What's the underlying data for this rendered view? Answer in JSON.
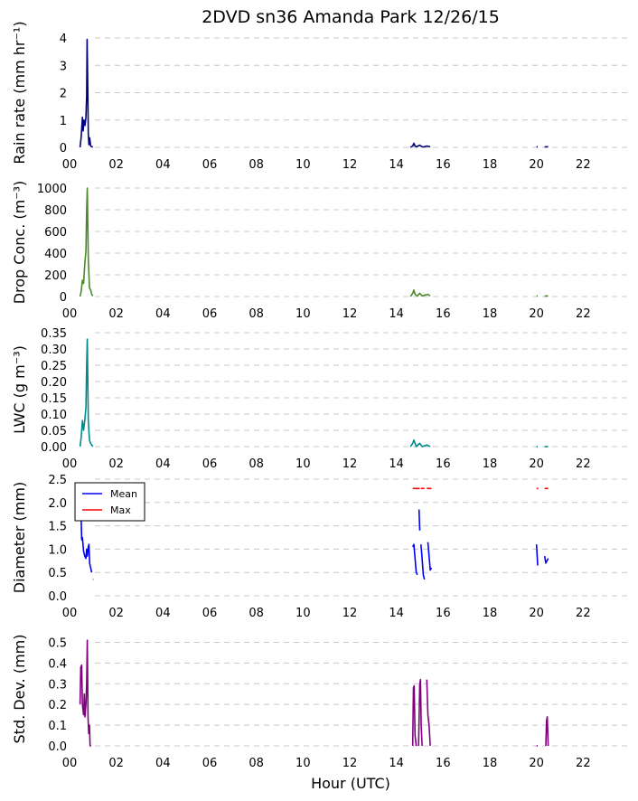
{
  "figure_title": "2DVD sn36 Amanda Park 12/26/15",
  "xlabel": "Hour (UTC)",
  "x_tick_labels": [
    "00",
    "02",
    "04",
    "06",
    "08",
    "10",
    "12",
    "14",
    "16",
    "18",
    "20",
    "22"
  ],
  "chart_data": [
    {
      "type": "line",
      "ylabel": "Rain rate (mm hr⁻¹)",
      "xlim": [
        0,
        24
      ],
      "ylim": [
        0,
        4
      ],
      "yticks": [
        0,
        1,
        2,
        3,
        4
      ],
      "ytick_labels": [
        "0",
        "1",
        "2",
        "3",
        "4"
      ],
      "grid": "horizontal dashed",
      "series": [
        {
          "color": "#000080",
          "segments": [
            [
              [
                0.45,
                0
              ],
              [
                0.5,
                0.4
              ],
              [
                0.55,
                1.1
              ],
              [
                0.58,
                0.6
              ],
              [
                0.62,
                1.0
              ],
              [
                0.66,
                0.8
              ],
              [
                0.7,
                1.1
              ],
              [
                0.73,
                1.9
              ],
              [
                0.75,
                3.95
              ],
              [
                0.78,
                2.0
              ],
              [
                0.8,
                0.5
              ],
              [
                0.83,
                0.1
              ],
              [
                0.86,
                0.35
              ],
              [
                0.9,
                0.05
              ],
              [
                0.95,
                0.02
              ],
              [
                1.0,
                0.02
              ]
            ],
            [
              [
                14.6,
                0
              ],
              [
                14.7,
                0.05
              ],
              [
                14.75,
                0.15
              ],
              [
                14.8,
                0.05
              ],
              [
                14.85,
                0.02
              ],
              [
                15.0,
                0.08
              ],
              [
                15.1,
                0.02
              ],
              [
                15.2,
                0.02
              ],
              [
                15.3,
                0.05
              ],
              [
                15.45,
                0.02
              ]
            ],
            [
              [
                20.0,
                0.02
              ],
              [
                20.05,
                0.02
              ]
            ],
            [
              [
                20.35,
                0.02
              ],
              [
                20.5,
                0.02
              ]
            ]
          ]
        }
      ]
    },
    {
      "type": "line",
      "ylabel": "Drop Conc. (m⁻³)",
      "xlim": [
        0,
        24
      ],
      "ylim": [
        0,
        1000
      ],
      "yticks": [
        0,
        200,
        400,
        600,
        800,
        1000
      ],
      "ytick_labels": [
        "0",
        "200",
        "400",
        "600",
        "800",
        "1000"
      ],
      "grid": "horizontal dashed",
      "series": [
        {
          "color": "#4a8a2a",
          "segments": [
            [
              [
                0.45,
                0
              ],
              [
                0.5,
                50
              ],
              [
                0.55,
                150
              ],
              [
                0.6,
                120
              ],
              [
                0.65,
                300
              ],
              [
                0.7,
                420
              ],
              [
                0.73,
                800
              ],
              [
                0.76,
                1000
              ],
              [
                0.8,
                350
              ],
              [
                0.85,
                80
              ],
              [
                0.9,
                60
              ],
              [
                0.95,
                20
              ],
              [
                1.0,
                5
              ]
            ],
            [
              [
                14.6,
                0
              ],
              [
                14.7,
                30
              ],
              [
                14.75,
                60
              ],
              [
                14.8,
                20
              ],
              [
                14.9,
                5
              ],
              [
                15.0,
                30
              ],
              [
                15.1,
                5
              ],
              [
                15.25,
                15
              ],
              [
                15.35,
                20
              ],
              [
                15.45,
                5
              ]
            ],
            [
              [
                20.0,
                5
              ],
              [
                20.05,
                5
              ]
            ],
            [
              [
                20.35,
                5
              ],
              [
                20.5,
                5
              ]
            ]
          ]
        }
      ]
    },
    {
      "type": "line",
      "ylabel": "LWC (g m⁻³)",
      "xlim": [
        0,
        24
      ],
      "ylim": [
        0,
        0.35
      ],
      "yticks": [
        0,
        0.05,
        0.1,
        0.15,
        0.2,
        0.25,
        0.3,
        0.35
      ],
      "ytick_labels": [
        "0.00",
        "0.05",
        "0.10",
        "0.15",
        "0.20",
        "0.25",
        "0.30",
        "0.35"
      ],
      "grid": "horizontal dashed",
      "series": [
        {
          "color": "#008b8b",
          "segments": [
            [
              [
                0.45,
                0
              ],
              [
                0.5,
                0.03
              ],
              [
                0.55,
                0.08
              ],
              [
                0.6,
                0.05
              ],
              [
                0.65,
                0.08
              ],
              [
                0.7,
                0.12
              ],
              [
                0.73,
                0.25
              ],
              [
                0.76,
                0.33
              ],
              [
                0.8,
                0.08
              ],
              [
                0.85,
                0.02
              ],
              [
                0.9,
                0.01
              ],
              [
                1.0,
                0.0
              ]
            ],
            [
              [
                14.6,
                0
              ],
              [
                14.7,
                0.01
              ],
              [
                14.75,
                0.02
              ],
              [
                14.8,
                0.01
              ],
              [
                14.85,
                0.0
              ],
              [
                15.0,
                0.01
              ],
              [
                15.1,
                0.0
              ],
              [
                15.3,
                0.005
              ],
              [
                15.45,
                0.0
              ]
            ],
            [
              [
                20.0,
                0.0
              ],
              [
                20.05,
                0.0
              ]
            ],
            [
              [
                20.35,
                0.0
              ],
              [
                20.5,
                0.0
              ]
            ]
          ]
        }
      ]
    },
    {
      "type": "line",
      "ylabel": "Diameter (mm)",
      "xlim": [
        0,
        24
      ],
      "ylim": [
        0,
        2.5
      ],
      "yticks": [
        0,
        0.5,
        1,
        1.5,
        2,
        2.5
      ],
      "ytick_labels": [
        "0.0",
        "0.5",
        "1.0",
        "1.5",
        "2.0",
        "2.5"
      ],
      "grid": "horizontal dashed",
      "legend": {
        "placement": "upper-left",
        "entries": [
          "Mean",
          "Max"
        ]
      },
      "series": [
        {
          "name": "Mean",
          "color": "#0000ff",
          "segments": [
            [
              [
                0.5,
                1.6
              ],
              [
                0.52,
                1.2
              ],
              [
                0.55,
                1.25
              ],
              [
                0.6,
                0.95
              ],
              [
                0.65,
                0.85
              ],
              [
                0.7,
                0.8
              ],
              [
                0.73,
                1.0
              ],
              [
                0.76,
                0.85
              ],
              [
                0.8,
                1.05
              ],
              [
                0.83,
                1.1
              ],
              [
                0.86,
                0.7
              ],
              [
                0.9,
                0.6
              ],
              [
                0.95,
                0.5
              ]
            ],
            [
              [
                1.0,
                0.35
              ],
              [
                1.02,
                0.35
              ]
            ],
            [
              [
                14.7,
                1.05
              ],
              [
                14.75,
                1.1
              ],
              [
                14.8,
                0.8
              ],
              [
                14.85,
                0.5
              ],
              [
                14.9,
                0.45
              ]
            ],
            [
              [
                14.97,
                1.85
              ],
              [
                15.0,
                1.4
              ]
            ],
            [
              [
                15.05,
                1.1
              ],
              [
                15.1,
                0.8
              ],
              [
                15.15,
                0.45
              ],
              [
                15.2,
                0.35
              ]
            ],
            [
              [
                15.35,
                1.15
              ],
              [
                15.4,
                0.85
              ],
              [
                15.45,
                0.55
              ],
              [
                15.5,
                0.6
              ]
            ],
            [
              [
                20.0,
                1.1
              ],
              [
                20.05,
                0.65
              ]
            ],
            [
              [
                20.35,
                0.85
              ],
              [
                20.4,
                0.7
              ],
              [
                20.5,
                0.8
              ]
            ]
          ]
        },
        {
          "name": "Max",
          "color": "#ff0000",
          "segments": [
            [
              [
                0.46,
                1.75
              ],
              [
                0.5,
                1.6
              ]
            ],
            [
              [
                14.7,
                2.3
              ],
              [
                15.0,
                2.3
              ]
            ],
            [
              [
                15.05,
                2.3
              ],
              [
                15.2,
                2.3
              ]
            ],
            [
              [
                15.3,
                2.3
              ],
              [
                15.5,
                2.3
              ]
            ],
            [
              [
                20.0,
                2.3
              ],
              [
                20.08,
                2.3
              ]
            ],
            [
              [
                20.35,
                2.3
              ],
              [
                20.5,
                2.3
              ]
            ]
          ]
        }
      ]
    },
    {
      "type": "line",
      "ylabel": "Std. Dev. (mm)",
      "xlim": [
        0,
        24
      ],
      "ylim": [
        0,
        0.55
      ],
      "yticks": [
        0,
        0.1,
        0.2,
        0.3,
        0.4,
        0.5
      ],
      "ytick_labels": [
        "0.0",
        "0.1",
        "0.2",
        "0.3",
        "0.4",
        "0.5"
      ],
      "grid": "horizontal dashed",
      "series": [
        {
          "color": "#800080",
          "segments": [
            [
              [
                0.45,
                0.2
              ],
              [
                0.48,
                0.38
              ],
              [
                0.52,
                0.39
              ],
              [
                0.55,
                0.2
              ],
              [
                0.6,
                0.15
              ],
              [
                0.63,
                0.25
              ],
              [
                0.66,
                0.14
              ],
              [
                0.7,
                0.2
              ],
              [
                0.73,
                0.3
              ],
              [
                0.76,
                0.51
              ],
              [
                0.79,
                0.14
              ],
              [
                0.82,
                0.06
              ],
              [
                0.85,
                0.1
              ],
              [
                0.88,
                0.0
              ],
              [
                0.92,
                0.0
              ]
            ],
            [
              [
                14.7,
                0.0
              ],
              [
                14.73,
                0.28
              ],
              [
                14.76,
                0.29
              ],
              [
                14.8,
                0.05
              ],
              [
                14.85,
                0.0
              ]
            ],
            [
              [
                14.95,
                0.0
              ],
              [
                15.0,
                0.3
              ],
              [
                15.03,
                0.32
              ],
              [
                15.06,
                0.1
              ],
              [
                15.1,
                0.0
              ]
            ],
            [
              [
                15.3,
                0.32
              ],
              [
                15.35,
                0.15
              ],
              [
                15.4,
                0.1
              ],
              [
                15.45,
                0.0
              ]
            ],
            [
              [
                20.0,
                0.0
              ],
              [
                20.05,
                0.0
              ]
            ],
            [
              [
                20.4,
                0.0
              ],
              [
                20.43,
                0.12
              ],
              [
                20.46,
                0.14
              ],
              [
                20.5,
                0.0
              ]
            ]
          ]
        }
      ]
    }
  ]
}
